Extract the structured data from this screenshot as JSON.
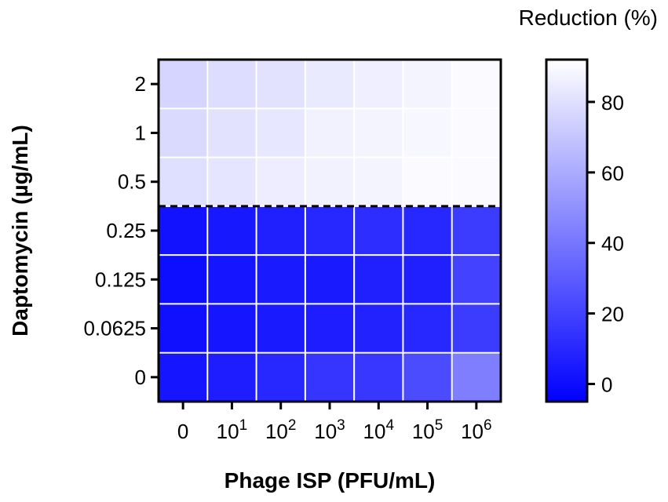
{
  "chart_data": {
    "type": "heatmap",
    "title": "",
    "xlabel": "Phage ISP (PFU/mL)",
    "ylabel": "Daptomycin (µg/mL)",
    "x_categories": [
      {
        "base": "0",
        "exp": ""
      },
      {
        "base": "10",
        "exp": "1"
      },
      {
        "base": "10",
        "exp": "2"
      },
      {
        "base": "10",
        "exp": "3"
      },
      {
        "base": "10",
        "exp": "4"
      },
      {
        "base": "10",
        "exp": "5"
      },
      {
        "base": "10",
        "exp": "6"
      }
    ],
    "y_categories": [
      "2",
      "1",
      "0.5",
      "0.25",
      "0.125",
      "0.0625",
      "0"
    ],
    "values": [
      [
        76,
        79,
        81,
        84,
        86,
        88,
        90
      ],
      [
        78,
        81,
        83,
        87,
        88,
        89,
        90
      ],
      [
        80,
        82,
        85,
        87,
        88,
        90,
        90
      ],
      [
        2,
        4,
        7,
        10,
        12,
        10,
        18
      ],
      [
        0,
        3,
        5,
        5,
        7,
        7,
        20
      ],
      [
        1,
        3,
        5,
        6,
        8,
        10,
        18
      ],
      [
        3,
        6,
        10,
        15,
        16,
        24,
        43
      ]
    ],
    "threshold_line_between_rows": [
      "0.5",
      "0.25"
    ],
    "colorbar": {
      "title": "Reduction (%)",
      "range": [
        -5,
        92
      ],
      "ticks": [
        0,
        20,
        40,
        60,
        80
      ],
      "low_color": "#0000ff",
      "high_color": "#ffffff"
    }
  }
}
